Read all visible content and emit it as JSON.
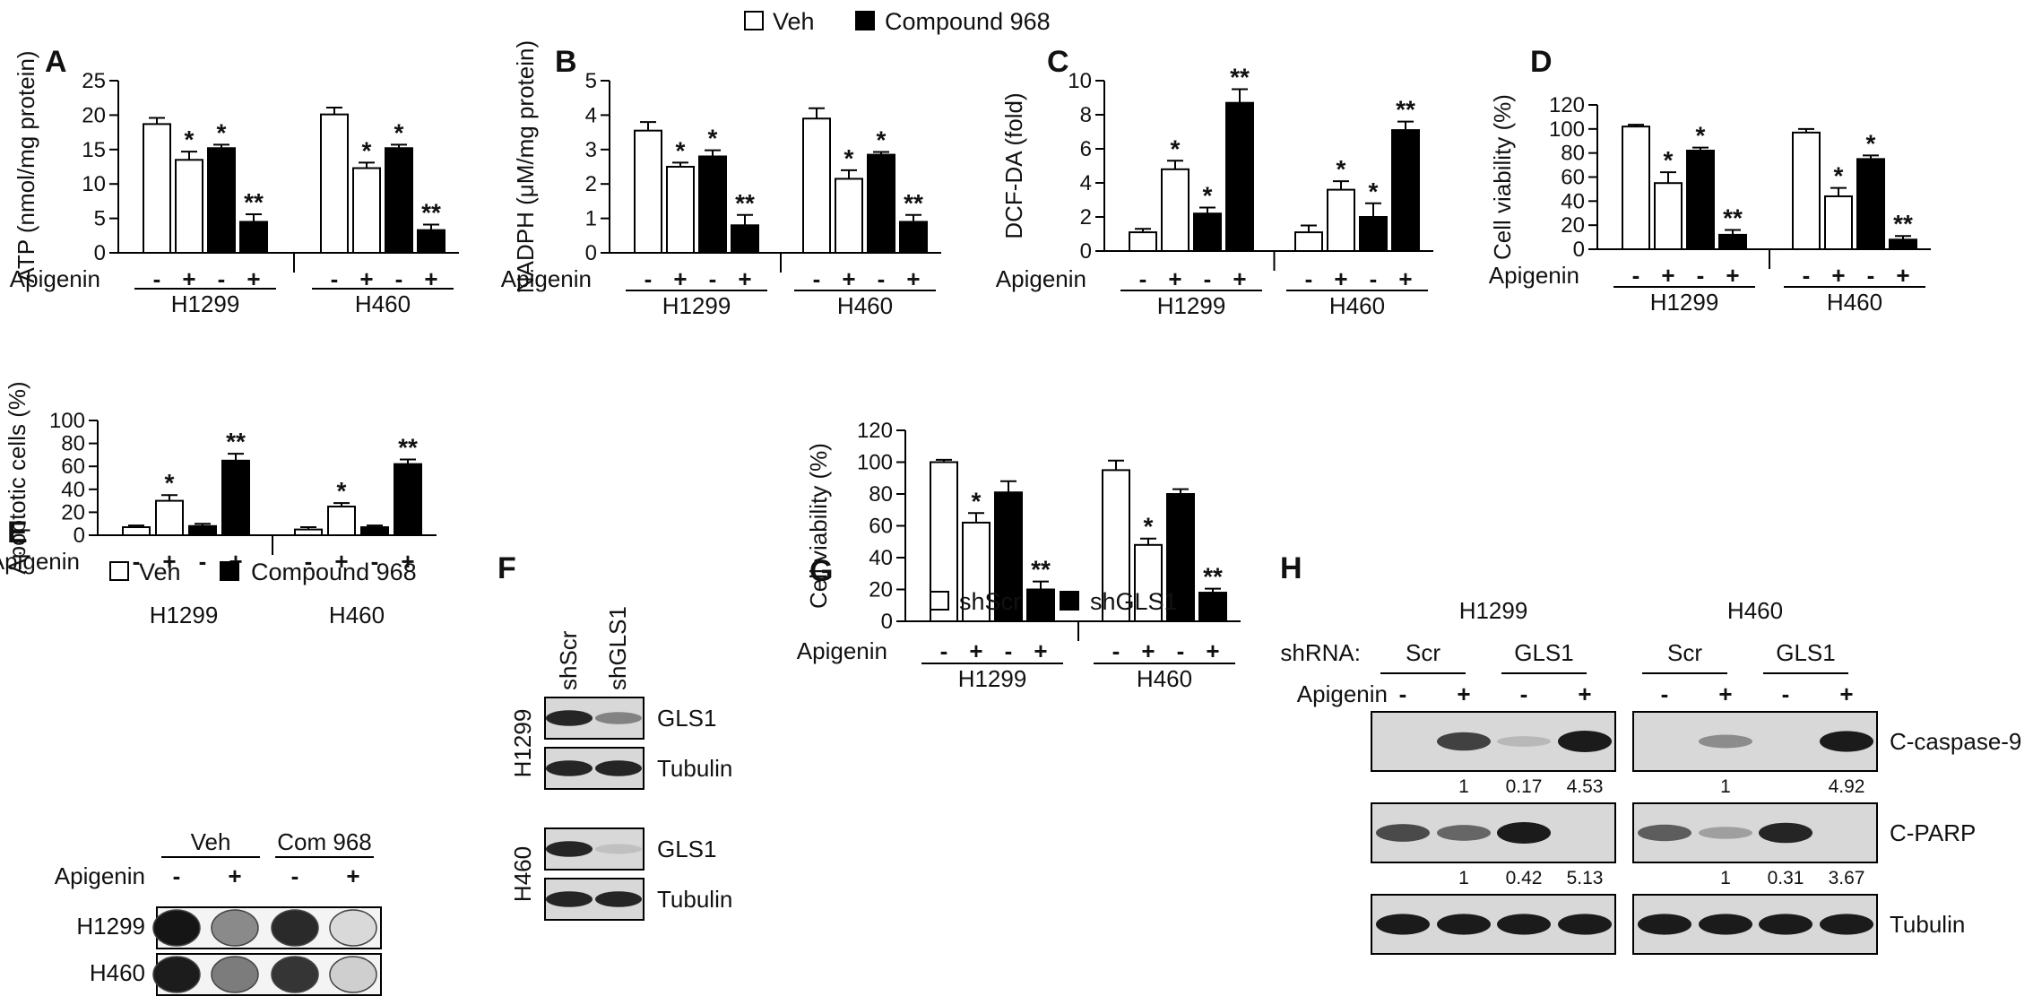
{
  "colors": {
    "veh": "#ffffff",
    "treated": "#000000",
    "stroke": "#000000",
    "blot_bg": "#d8d8d8",
    "band": "#1b1b1b"
  },
  "legend_top": {
    "veh": "Veh",
    "compound": "Compound 968"
  },
  "chart_data": [
    {
      "panel": "A",
      "type": "bar",
      "ylabel": "ATP (nmol/mg protein)",
      "ylim": [
        0,
        25
      ],
      "yticks": [
        0,
        5,
        10,
        15,
        20,
        25
      ],
      "row_label": "Apigenin",
      "signs": [
        "-",
        "+",
        "-",
        "+"
      ],
      "groups": [
        "H1299",
        "H460"
      ],
      "series": [
        {
          "name": "Veh",
          "values": [
            [
              18.7,
              13.5
            ],
            [
              20.1,
              12.3
            ]
          ],
          "errors": [
            [
              0.9,
              1.2
            ],
            [
              1.0,
              0.8
            ]
          ],
          "stars": [
            [
              "",
              "*"
            ],
            [
              "",
              "*"
            ]
          ]
        },
        {
          "name": "Compound 968",
          "values": [
            [
              15.2,
              4.5
            ],
            [
              15.2,
              3.3
            ]
          ],
          "errors": [
            [
              0.5,
              1.1
            ],
            [
              0.5,
              0.8
            ]
          ],
          "stars": [
            [
              "*",
              "**"
            ],
            [
              "*",
              "**"
            ]
          ]
        }
      ]
    },
    {
      "panel": "B",
      "type": "bar",
      "ylabel": "NADPH (μM/mg protein)",
      "ylim": [
        0,
        5
      ],
      "yticks": [
        0,
        1,
        2,
        3,
        4,
        5
      ],
      "row_label": "Apigenin",
      "signs": [
        "-",
        "+",
        "-",
        "+"
      ],
      "groups": [
        "H1299",
        "H460"
      ],
      "series": [
        {
          "name": "Veh",
          "values": [
            [
              3.55,
              2.5
            ],
            [
              3.9,
              2.15
            ]
          ],
          "errors": [
            [
              0.25,
              0.12
            ],
            [
              0.3,
              0.25
            ]
          ],
          "stars": [
            [
              "",
              "*"
            ],
            [
              "",
              "*"
            ]
          ]
        },
        {
          "name": "Compound 968",
          "values": [
            [
              2.8,
              0.8
            ],
            [
              2.85,
              0.9
            ]
          ],
          "errors": [
            [
              0.18,
              0.3
            ],
            [
              0.08,
              0.2
            ]
          ],
          "stars": [
            [
              "*",
              "**"
            ],
            [
              "*",
              "**"
            ]
          ]
        }
      ]
    },
    {
      "panel": "C",
      "type": "bar",
      "ylabel": "DCF-DA (fold)",
      "ylim": [
        0,
        10
      ],
      "yticks": [
        0,
        2,
        4,
        6,
        8,
        10
      ],
      "row_label": "Apigenin",
      "signs": [
        "-",
        "+",
        "-",
        "+"
      ],
      "groups": [
        "H1299",
        "H460"
      ],
      "series": [
        {
          "name": "Veh",
          "values": [
            [
              1.1,
              4.8
            ],
            [
              1.1,
              3.6
            ]
          ],
          "errors": [
            [
              0.2,
              0.5
            ],
            [
              0.4,
              0.5
            ]
          ],
          "stars": [
            [
              "",
              "*"
            ],
            [
              "",
              "*"
            ]
          ]
        },
        {
          "name": "Compound 968",
          "values": [
            [
              2.2,
              8.7
            ],
            [
              2.0,
              7.1
            ]
          ],
          "errors": [
            [
              0.35,
              0.8
            ],
            [
              0.8,
              0.5
            ]
          ],
          "stars": [
            [
              "*",
              "**"
            ],
            [
              "*",
              "**"
            ]
          ]
        }
      ]
    },
    {
      "panel": "D",
      "type": "bar",
      "ylabel": "Cell viability (%)",
      "ylim": [
        0,
        120
      ],
      "yticks": [
        0,
        20,
        40,
        60,
        80,
        100,
        120
      ],
      "row_label": "Apigenin",
      "signs": [
        "-",
        "+",
        "-",
        "+"
      ],
      "groups": [
        "H1299",
        "H460"
      ],
      "series": [
        {
          "name": "Veh",
          "values": [
            [
              102,
              55
            ],
            [
              97,
              44
            ]
          ],
          "errors": [
            [
              1.5,
              9
            ],
            [
              3,
              7
            ]
          ],
          "stars": [
            [
              "",
              "*"
            ],
            [
              "",
              "*"
            ]
          ]
        },
        {
          "name": "Compound 968",
          "values": [
            [
              82,
              12
            ],
            [
              75,
              8
            ]
          ],
          "errors": [
            [
              2.5,
              4
            ],
            [
              3,
              3
            ]
          ],
          "stars": [
            [
              "*",
              "**"
            ],
            [
              "*",
              "**"
            ]
          ]
        }
      ]
    },
    {
      "panel": "E",
      "type": "bar",
      "ylabel": "Apoptotic cells (%)",
      "ylim": [
        0,
        100
      ],
      "yticks": [
        0,
        20,
        40,
        60,
        80,
        100
      ],
      "row_label": "Apigenin",
      "signs": [
        "-",
        "+",
        "-",
        "+"
      ],
      "groups": [
        "H1299",
        "H460"
      ],
      "series": [
        {
          "name": "Veh",
          "values": [
            [
              7,
              30
            ],
            [
              5,
              25
            ]
          ],
          "errors": [
            [
              1.5,
              5
            ],
            [
              2,
              3
            ]
          ],
          "stars": [
            [
              "",
              "*"
            ],
            [
              "",
              "*"
            ]
          ]
        },
        {
          "name": "Compound 968",
          "values": [
            [
              8,
              65
            ],
            [
              7,
              62
            ]
          ],
          "errors": [
            [
              2,
              6
            ],
            [
              1.5,
              4
            ]
          ],
          "stars": [
            [
              "",
              "**"
            ],
            [
              "",
              "**"
            ]
          ]
        }
      ]
    },
    {
      "panel": "G",
      "type": "bar",
      "ylabel": "Cell viability (%)",
      "ylim": [
        0,
        120
      ],
      "yticks": [
        0,
        20,
        40,
        60,
        80,
        100,
        120
      ],
      "row_label": "Apigenin",
      "signs": [
        "-",
        "+",
        "-",
        "+"
      ],
      "groups": [
        "H1299",
        "H460"
      ],
      "series": [
        {
          "name": "shScr",
          "values": [
            [
              100,
              62
            ],
            [
              95,
              48
            ]
          ],
          "errors": [
            [
              1.5,
              6
            ],
            [
              6,
              4
            ]
          ],
          "stars": [
            [
              "",
              "*"
            ],
            [
              "",
              "*"
            ]
          ]
        },
        {
          "name": "shGLS1",
          "values": [
            [
              81,
              20
            ],
            [
              80,
              18
            ]
          ],
          "errors": [
            [
              7,
              5
            ],
            [
              3,
              2.5
            ]
          ],
          "stars": [
            [
              "",
              "**"
            ],
            [
              "",
              "**"
            ]
          ]
        }
      ]
    }
  ],
  "panel_e": {
    "legend": {
      "veh": "Veh",
      "compound": "Compound 968"
    },
    "cells": [
      "H1299",
      "H460"
    ],
    "plate_groups": [
      "Veh",
      "Com 968"
    ],
    "plate_row_label": "Apigenin",
    "plate_signs": [
      "-",
      "+",
      "-",
      "+"
    ],
    "plate_rows": [
      "H1299",
      "H460"
    ]
  },
  "panel_f": {
    "letter": "F",
    "columns": [
      "shScr",
      "shGLS1"
    ],
    "rows": [
      {
        "cell": "H1299",
        "blots": [
          {
            "label": "GLS1",
            "bands": [
              0.95,
              0.45
            ]
          },
          {
            "label": "Tubulin",
            "bands": [
              0.95,
              0.95
            ]
          }
        ]
      },
      {
        "cell": "H460",
        "blots": [
          {
            "label": "GLS1",
            "bands": [
              0.95,
              0.12
            ]
          },
          {
            "label": "Tubulin",
            "bands": [
              0.95,
              0.95
            ]
          }
        ]
      }
    ]
  },
  "panel_g": {
    "legend": {
      "a": "shScr",
      "b": "shGLS1"
    }
  },
  "panel_h": {
    "letter": "H",
    "cells": [
      "H1299",
      "H460"
    ],
    "shrna_label": "shRNA:",
    "groups": [
      "Scr",
      "GLS1"
    ],
    "row_label": "Apigenin",
    "signs": [
      "-",
      "+",
      "-",
      "+"
    ],
    "blots": [
      {
        "label": "C-caspase-9",
        "bands": [
          [
            0.0,
            0.75,
            0.12,
            1.0
          ],
          [
            0.0,
            0.35,
            0.0,
            0.95
          ]
        ],
        "quant": [
          [
            "1",
            "0.17",
            "4.53"
          ],
          [
            "1",
            "",
            "4.92"
          ]
        ]
      },
      {
        "label": "C-PARP",
        "bands": [
          [
            0.7,
            0.55,
            1.0,
            null
          ],
          [
            0.6,
            0.25,
            0.9,
            null
          ]
        ],
        "quant": [
          [
            "1",
            "0.42",
            "5.13"
          ],
          [
            "1",
            "0.31",
            "3.67"
          ]
        ]
      },
      {
        "label": "Tubulin",
        "bands": [
          [
            0.95,
            0.95,
            0.95,
            0.95
          ],
          [
            0.95,
            0.95,
            0.95,
            0.95
          ]
        ],
        "quant": []
      }
    ]
  }
}
